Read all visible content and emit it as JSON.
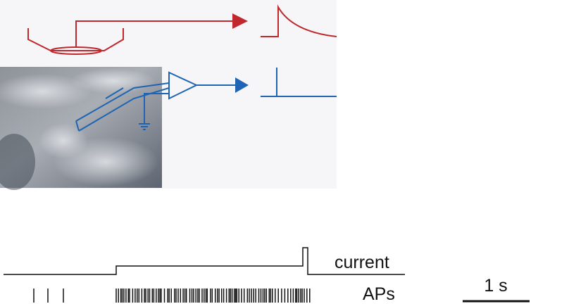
{
  "traces": {
    "current_label": "current",
    "aps_label": "APs"
  },
  "scale_bar": {
    "label": "1 s"
  }
}
